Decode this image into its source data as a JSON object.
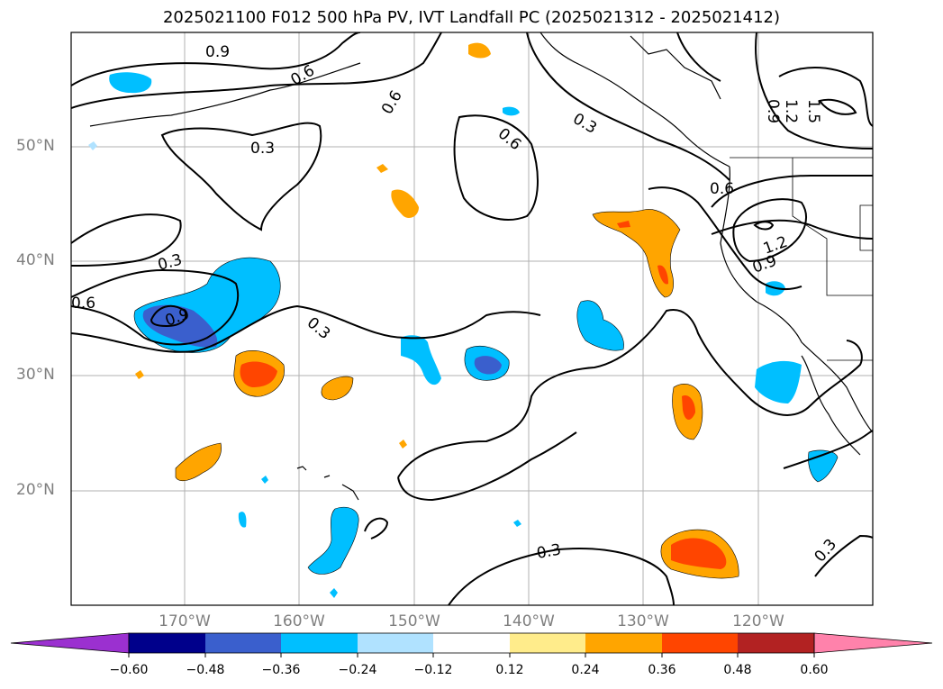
{
  "title": "2025021100 F012 500 hPa PV, IVT Landfall PC (2025021312 - 2025021412)",
  "lat_labels": [
    "50°N",
    "40°N",
    "30°N",
    "20°N"
  ],
  "lon_labels": [
    "170°W",
    "160°W",
    "150°W",
    "140°W",
    "130°W",
    "120°W"
  ],
  "contour_labels": [
    "0.9",
    "0.6",
    "0.6",
    "0.3",
    "0.3",
    "0.6",
    "0.3",
    "0.9",
    "0.3",
    "0.6",
    "0.3",
    "0.6",
    "1.2",
    "0.9",
    "0.9",
    "1.2",
    "1.5",
    "0.3",
    "0.3"
  ],
  "colorbar": {
    "tick_labels": [
      "−0.60",
      "−0.48",
      "−0.36",
      "−0.24",
      "−0.12",
      "0.12",
      "0.24",
      "0.36",
      "0.48",
      "0.60"
    ],
    "colors": [
      "#9b30d0",
      "#00008b",
      "#3a5fcd",
      "#00bfff",
      "#b0e2ff",
      "#ffffff",
      "#ffec8b",
      "#ffa500",
      "#ff4500",
      "#b22222",
      "#ff82ab"
    ]
  },
  "map_colors": {
    "frame": "#000000",
    "grid": "#b0b0b0",
    "coast": "#000000",
    "contour": "#000000"
  }
}
